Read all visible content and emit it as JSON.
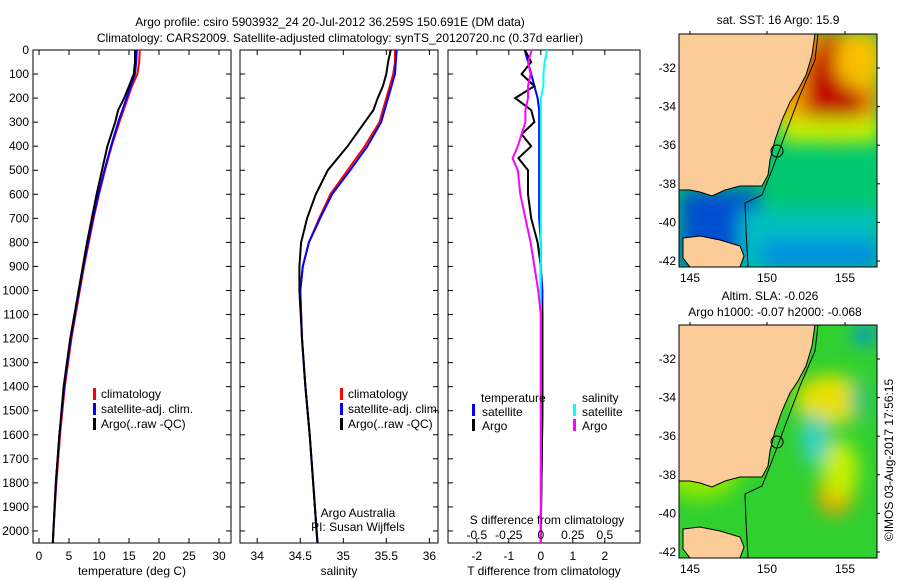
{
  "title_line1": "Argo profile: csiro 5903932_24 20-Jul-2012 36.259S 150.691E (DM data)",
  "title_line2": "Climatology: CARS2009. Satellite-adjusted climatology: synTS_20120720.nc (0.37d earlier)",
  "colors": {
    "climatology": "#ff0000",
    "satellite": "#0000ff",
    "argo": "#000000",
    "sal_sat": "#00ffff",
    "sal_argo": "#ff00ff",
    "land": "#fccc98"
  },
  "chart_data": [
    {
      "type": "line",
      "name": "temperature",
      "xlabel": "temperature (deg C)",
      "ylabel": "depth",
      "xlim": [
        -1,
        32
      ],
      "ylim": [
        2050,
        0
      ],
      "xticks": [
        0,
        5,
        10,
        15,
        20,
        25,
        30
      ],
      "yticks": [
        0,
        100,
        200,
        300,
        400,
        500,
        600,
        700,
        800,
        900,
        1000,
        1100,
        1200,
        1300,
        1400,
        1500,
        1600,
        1700,
        1800,
        1900,
        2000
      ],
      "legend": [
        "climatology",
        "satellite-adj. clim.",
        "Argo(..raw -QC)"
      ],
      "depth": [
        0,
        50,
        100,
        150,
        200,
        250,
        300,
        400,
        500,
        600,
        700,
        800,
        900,
        1000,
        1200,
        1400,
        1600,
        1800,
        2000,
        2050
      ],
      "series": [
        {
          "name": "climatology",
          "values": [
            16.8,
            16.7,
            16.4,
            15.5,
            14.8,
            14.1,
            13.4,
            12.1,
            11.0,
            10.0,
            9.1,
            8.3,
            7.5,
            6.8,
            5.4,
            4.3,
            3.5,
            2.9,
            2.4,
            2.3
          ]
        },
        {
          "name": "satellite-adj. clim.",
          "values": [
            16.3,
            16.2,
            16.0,
            15.3,
            14.6,
            13.9,
            13.2,
            12.0,
            10.9,
            9.9,
            9.0,
            8.2,
            7.4,
            6.7,
            5.3,
            4.2,
            3.4,
            2.8,
            2.4,
            2.3
          ]
        },
        {
          "name": "Argo(..raw -QC)",
          "values": [
            16.0,
            16.0,
            15.8,
            15.0,
            14.2,
            13.2,
            12.7,
            11.4,
            10.5,
            9.6,
            8.8,
            8.0,
            7.3,
            6.6,
            5.2,
            4.1,
            3.4,
            2.8,
            2.4,
            2.3
          ]
        }
      ]
    },
    {
      "type": "line",
      "name": "salinity",
      "xlabel": "salinity",
      "xlim": [
        33.8,
        36.1
      ],
      "ylim": [
        2050,
        0
      ],
      "xticks": [
        34,
        34.5,
        35,
        35.5,
        36
      ],
      "legend": [
        "climatology",
        "satellite-adj. clim.",
        "Argo(..raw -QC)"
      ],
      "annotation": [
        "Argo Australia",
        "PI: Susan Wijffels"
      ],
      "depth": [
        0,
        50,
        100,
        150,
        200,
        250,
        300,
        400,
        500,
        600,
        700,
        800,
        900,
        1000,
        1200,
        1400,
        1600,
        1800,
        2000,
        2050
      ],
      "series": [
        {
          "name": "climatology",
          "values": [
            35.6,
            35.6,
            35.58,
            35.54,
            35.5,
            35.46,
            35.42,
            35.25,
            35.05,
            34.85,
            34.72,
            34.6,
            34.53,
            34.5,
            34.52,
            34.56,
            34.61,
            34.65,
            34.69,
            34.7
          ]
        },
        {
          "name": "satellite-adj. clim.",
          "values": [
            35.62,
            35.61,
            35.6,
            35.56,
            35.52,
            35.48,
            35.44,
            35.28,
            35.08,
            34.87,
            34.73,
            34.6,
            34.53,
            34.5,
            34.52,
            34.56,
            34.61,
            34.65,
            34.69,
            34.7
          ]
        },
        {
          "name": "Argo(..raw -QC)",
          "values": [
            35.55,
            35.52,
            35.5,
            35.46,
            35.4,
            35.35,
            35.25,
            35.05,
            34.82,
            34.68,
            34.58,
            34.51,
            34.49,
            34.49,
            34.52,
            34.56,
            34.61,
            34.65,
            34.69,
            34.7
          ]
        }
      ]
    },
    {
      "type": "line",
      "name": "difference",
      "xlabel": "T difference from climatology",
      "xlabel2": "S difference from climatology",
      "xlim": [
        -2.9,
        3.1
      ],
      "xticks": [
        -2,
        -1,
        0,
        1,
        2
      ],
      "xticks2": [
        "-0.5",
        "-0.25",
        "0",
        "0.25",
        "0.5"
      ],
      "ylim": [
        2050,
        0
      ],
      "legend": {
        "temperature": [
          "temperature",
          "satellite",
          "Argo"
        ],
        "salinity": [
          "salinity",
          "satellite",
          "Argo"
        ]
      },
      "depth": [
        0,
        50,
        100,
        150,
        200,
        250,
        300,
        350,
        400,
        450,
        500,
        600,
        700,
        800,
        900,
        1000,
        1100,
        1200,
        1500,
        2000,
        2050
      ],
      "series": [
        {
          "name": "T satellite",
          "values": [
            -0.5,
            -0.4,
            -0.3,
            -0.2,
            -0.1,
            -0.05,
            -0.05,
            -0.05,
            -0.05,
            -0.05,
            -0.05,
            -0.05,
            -0.05,
            0,
            0,
            0.05,
            0.05,
            0.05,
            0.05,
            0,
            0
          ]
        },
        {
          "name": "T Argo",
          "values": [
            -0.5,
            -0.3,
            -0.6,
            -0.2,
            -0.8,
            -0.3,
            -0.2,
            -0.6,
            -0.3,
            -0.7,
            -0.4,
            -0.4,
            -0.3,
            -0.1,
            0,
            0,
            0.05,
            0.05,
            0.05,
            0,
            0
          ]
        },
        {
          "name": "S satellite",
          "values": [
            0.05,
            0.03,
            0.02,
            0.02,
            0,
            0,
            0,
            0,
            0,
            0,
            0,
            0,
            0,
            0,
            0,
            0,
            0,
            0,
            0,
            0,
            0
          ]
        },
        {
          "name": "S Argo",
          "values": [
            -0.07,
            -0.1,
            -0.08,
            -0.1,
            -0.1,
            -0.12,
            -0.12,
            -0.15,
            -0.18,
            -0.22,
            -0.18,
            -0.16,
            -0.12,
            -0.08,
            -0.05,
            -0.02,
            0,
            0,
            0,
            0,
            0
          ]
        }
      ]
    }
  ],
  "map_sst": {
    "title": "sat. SST: 16 Argo: 15.9",
    "xticks": [
      "145",
      "150",
      "155"
    ],
    "yticks": [
      "-32",
      "-34",
      "-36",
      "-38",
      "-40",
      "-42"
    ]
  },
  "map_sla": {
    "title1": "Altim. SLA: -0.026",
    "title2": "Argo h1000: -0.07 h2000: -0.068",
    "xticks": [
      "145",
      "150",
      "155"
    ],
    "yticks": [
      "-32",
      "-34",
      "-36",
      "-38",
      "-40",
      "-42"
    ]
  },
  "credit": "©IMOS 03-Aug-2017 17:56:15"
}
